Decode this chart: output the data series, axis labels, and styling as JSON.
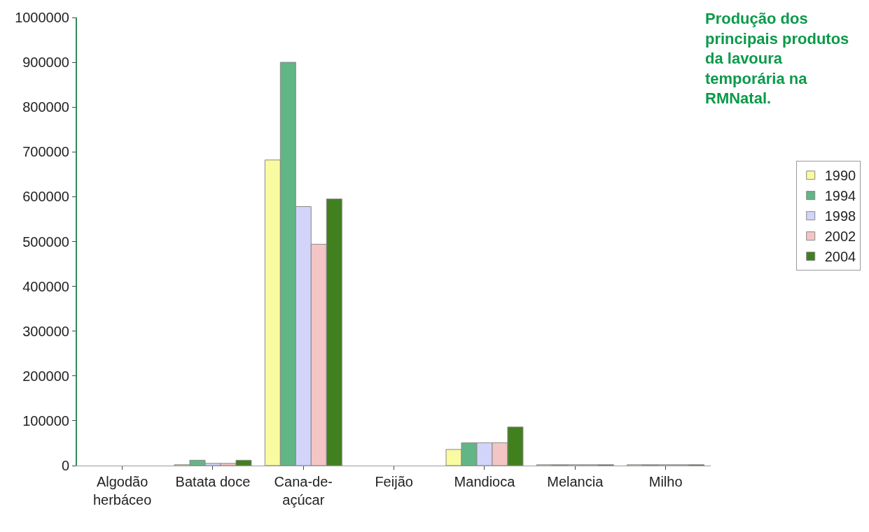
{
  "chart_data": {
    "type": "bar",
    "title": "Produção dos\nprincipais produtos\nda lavoura\ntemporária na\nRMNatal.",
    "categories": [
      "Algodão\nherbáceo",
      "Batata doce",
      "Cana-de-\naçúcar",
      "Feijão",
      "Mandioca",
      "Melancia",
      "Milho"
    ],
    "series": [
      {
        "name": "1990",
        "color": "#fafaa0",
        "values": [
          null,
          2000,
          682000,
          null,
          36000,
          2000,
          2000
        ]
      },
      {
        "name": "1994",
        "color": "#62b585",
        "values": [
          null,
          12000,
          900000,
          null,
          51000,
          2000,
          2000
        ]
      },
      {
        "name": "1998",
        "color": "#d2d4fa",
        "values": [
          null,
          5000,
          578000,
          null,
          51000,
          2000,
          2000
        ]
      },
      {
        "name": "2002",
        "color": "#f4c5c5",
        "values": [
          null,
          5000,
          494000,
          null,
          51000,
          2000,
          2000
        ]
      },
      {
        "name": "2004",
        "color": "#40801e",
        "values": [
          null,
          12000,
          595000,
          null,
          86000,
          2000,
          2000
        ]
      }
    ],
    "ylim": [
      0,
      1000000
    ],
    "yticks": [
      0,
      100000,
      200000,
      300000,
      400000,
      500000,
      600000,
      700000,
      800000,
      900000,
      1000000
    ],
    "legend": "right"
  }
}
